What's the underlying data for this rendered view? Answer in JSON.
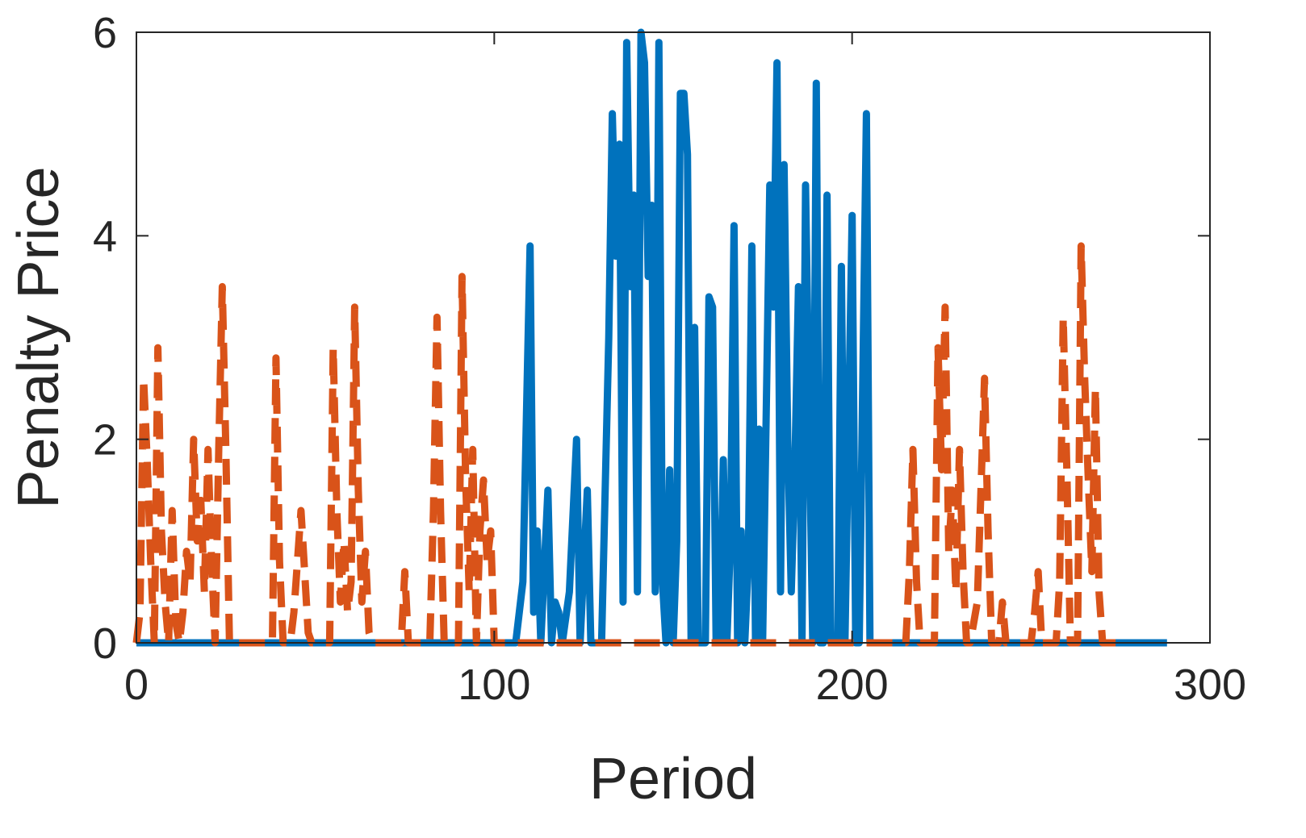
{
  "chart_data": {
    "type": "line",
    "title": "",
    "xlabel": "Period",
    "ylabel": "Penalty Price",
    "xlim": [
      0,
      300
    ],
    "ylim": [
      0,
      6
    ],
    "xticks": [
      0,
      100,
      200,
      300
    ],
    "yticks": [
      0,
      2,
      4,
      6
    ],
    "grid": false,
    "series": [
      {
        "color": "#0072BD",
        "style": "solid",
        "points": [
          [
            0,
            0
          ],
          [
            106,
            0
          ],
          [
            108,
            0.6
          ],
          [
            110,
            3.9
          ],
          [
            111,
            0.3
          ],
          [
            112,
            1.1
          ],
          [
            113,
            0
          ],
          [
            115,
            1.5
          ],
          [
            116,
            0
          ],
          [
            117,
            0.4
          ],
          [
            118,
            0.3
          ],
          [
            119,
            0
          ],
          [
            121,
            0.5
          ],
          [
            123,
            2.0
          ],
          [
            124,
            0
          ],
          [
            126,
            1.5
          ],
          [
            127,
            0
          ],
          [
            130,
            0
          ],
          [
            132,
            3.0
          ],
          [
            133,
            5.2
          ],
          [
            134,
            3.8
          ],
          [
            135,
            4.9
          ],
          [
            136,
            0.4
          ],
          [
            137,
            5.9
          ],
          [
            138,
            3.5
          ],
          [
            139,
            4.4
          ],
          [
            140,
            0.5
          ],
          [
            141,
            6.0
          ],
          [
            142,
            5.7
          ],
          [
            143,
            3.6
          ],
          [
            144,
            4.3
          ],
          [
            145,
            0.5
          ],
          [
            146,
            5.9
          ],
          [
            147,
            0.6
          ],
          [
            148,
            0
          ],
          [
            149,
            1.7
          ],
          [
            150,
            0
          ],
          [
            151,
            1.0
          ],
          [
            152,
            5.4
          ],
          [
            153,
            5.4
          ],
          [
            154,
            4.8
          ],
          [
            155,
            0
          ],
          [
            156,
            3.1
          ],
          [
            157,
            0
          ],
          [
            159,
            0
          ],
          [
            160,
            3.4
          ],
          [
            161,
            3.3
          ],
          [
            162,
            0
          ],
          [
            163,
            0
          ],
          [
            164,
            1.8
          ],
          [
            165,
            0
          ],
          [
            166,
            1.0
          ],
          [
            167,
            4.1
          ],
          [
            168,
            0
          ],
          [
            169,
            1.1
          ],
          [
            170,
            0
          ],
          [
            171,
            0.8
          ],
          [
            172,
            3.9
          ],
          [
            173,
            0
          ],
          [
            174,
            2.1
          ],
          [
            175,
            0
          ],
          [
            177,
            4.5
          ],
          [
            178,
            3.3
          ],
          [
            179,
            5.7
          ],
          [
            180,
            0.5
          ],
          [
            181,
            4.7
          ],
          [
            182,
            2.0
          ],
          [
            183,
            0.5
          ],
          [
            184,
            1.7
          ],
          [
            185,
            3.5
          ],
          [
            186,
            0
          ],
          [
            187,
            4.5
          ],
          [
            188,
            2.2
          ],
          [
            189,
            0
          ],
          [
            190,
            5.5
          ],
          [
            191,
            0
          ],
          [
            192,
            0
          ],
          [
            193,
            4.4
          ],
          [
            194,
            0
          ],
          [
            195,
            0
          ],
          [
            196,
            0
          ],
          [
            197,
            3.7
          ],
          [
            198,
            0
          ],
          [
            200,
            4.2
          ],
          [
            201,
            0
          ],
          [
            202,
            0
          ],
          [
            204,
            5.2
          ],
          [
            205,
            0
          ],
          [
            210,
            0
          ],
          [
            230,
            0
          ],
          [
            288,
            0
          ]
        ]
      },
      {
        "color": "#D95319",
        "style": "dashed",
        "points": [
          [
            0,
            0
          ],
          [
            1,
            0.3
          ],
          [
            2,
            2.6
          ],
          [
            3,
            1.8
          ],
          [
            4,
            0.8
          ],
          [
            5,
            0
          ],
          [
            6,
            2.9
          ],
          [
            7,
            1.1
          ],
          [
            8,
            0.4
          ],
          [
            9,
            0
          ],
          [
            10,
            1.3
          ],
          [
            11,
            0.2
          ],
          [
            12,
            0
          ],
          [
            13,
            0.3
          ],
          [
            14,
            0.9
          ],
          [
            15,
            0.6
          ],
          [
            16,
            2.0
          ],
          [
            17,
            1.0
          ],
          [
            18,
            1.4
          ],
          [
            19,
            0.5
          ],
          [
            20,
            1.9
          ],
          [
            21,
            0.8
          ],
          [
            22,
            0
          ],
          [
            23,
            1.9
          ],
          [
            24,
            3.5
          ],
          [
            25,
            1.9
          ],
          [
            26,
            0
          ],
          [
            30,
            0
          ],
          [
            38,
            0
          ],
          [
            39,
            2.8
          ],
          [
            40,
            0.8
          ],
          [
            41,
            0
          ],
          [
            43,
            0
          ],
          [
            44,
            0.3
          ],
          [
            45,
            0.8
          ],
          [
            46,
            1.3
          ],
          [
            47,
            0.7
          ],
          [
            48,
            0.1
          ],
          [
            49,
            0
          ],
          [
            54,
            0
          ],
          [
            55,
            2.9
          ],
          [
            56,
            1.3
          ],
          [
            57,
            0.4
          ],
          [
            58,
            1.0
          ],
          [
            59,
            0.3
          ],
          [
            60,
            0.6
          ],
          [
            61,
            3.3
          ],
          [
            62,
            1.5
          ],
          [
            63,
            0.4
          ],
          [
            64,
            0.9
          ],
          [
            65,
            0.1
          ],
          [
            66,
            0
          ],
          [
            74,
            0
          ],
          [
            75,
            0.7
          ],
          [
            76,
            0
          ],
          [
            82,
            0
          ],
          [
            83,
            1.3
          ],
          [
            84,
            3.2
          ],
          [
            85,
            1.3
          ],
          [
            86,
            0
          ],
          [
            90,
            0
          ],
          [
            91,
            3.6
          ],
          [
            92,
            1.6
          ],
          [
            93,
            0.5
          ],
          [
            94,
            1.9
          ],
          [
            95,
            0
          ],
          [
            96,
            1.1
          ],
          [
            97,
            1.6
          ],
          [
            98,
            0.8
          ],
          [
            99,
            1.1
          ],
          [
            100,
            0
          ],
          [
            120,
            0
          ],
          [
            130,
            0
          ],
          [
            140,
            0
          ],
          [
            160,
            0
          ],
          [
            170,
            0
          ],
          [
            180,
            0
          ],
          [
            190,
            0
          ],
          [
            200,
            0
          ],
          [
            210,
            0
          ],
          [
            215,
            0
          ],
          [
            216,
            0.7
          ],
          [
            217,
            1.9
          ],
          [
            218,
            0.6
          ],
          [
            219,
            0
          ],
          [
            223,
            0
          ],
          [
            224,
            2.9
          ],
          [
            225,
            1.7
          ],
          [
            226,
            3.3
          ],
          [
            227,
            0.9
          ],
          [
            228,
            1.5
          ],
          [
            229,
            0.5
          ],
          [
            230,
            1.9
          ],
          [
            231,
            0.7
          ],
          [
            232,
            0
          ],
          [
            233,
            0
          ],
          [
            235,
            0.4
          ],
          [
            236,
            1.5
          ],
          [
            237,
            2.6
          ],
          [
            238,
            1.1
          ],
          [
            239,
            0
          ],
          [
            241,
            0
          ],
          [
            242,
            0.4
          ],
          [
            243,
            0
          ],
          [
            250,
            0
          ],
          [
            251,
            0.3
          ],
          [
            252,
            0.7
          ],
          [
            253,
            0
          ],
          [
            257,
            0
          ],
          [
            258,
            0.6
          ],
          [
            259,
            3.2
          ],
          [
            260,
            1.7
          ],
          [
            261,
            0
          ],
          [
            263,
            0
          ],
          [
            264,
            3.9
          ],
          [
            265,
            2.6
          ],
          [
            266,
            1.6
          ],
          [
            267,
            0.7
          ],
          [
            268,
            2.5
          ],
          [
            269,
            0.5
          ],
          [
            270,
            0
          ],
          [
            272,
            0
          ],
          [
            274,
            0
          ]
        ]
      }
    ]
  }
}
